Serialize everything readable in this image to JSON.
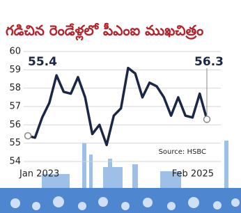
{
  "chart_data": {
    "type": "line",
    "title": "గడిచిన రెండేళ్లలో పీఎంఐ ముఖచిత్రం",
    "categories": [
      "Jan 2023",
      null,
      null,
      null,
      null,
      null,
      null,
      null,
      null,
      null,
      null,
      null,
      null,
      null,
      null,
      null,
      null,
      null,
      null,
      null,
      null,
      null,
      null,
      null,
      null,
      "Feb 2025"
    ],
    "values": [
      55.4,
      55.3,
      56.4,
      57.2,
      58.7,
      57.8,
      57.7,
      58.6,
      57.5,
      55.5,
      56.0,
      54.9,
      56.5,
      56.9,
      59.1,
      58.8,
      57.5,
      58.3,
      58.1,
      57.5,
      56.5,
      57.5,
      56.5,
      56.4,
      57.7,
      56.3
    ],
    "color": "#1c2745",
    "ylim": [
      54,
      60
    ],
    "yticks": [
      54,
      55,
      56,
      57,
      58,
      59,
      60
    ],
    "grid": true,
    "source": "Source: HSBC"
  }
}
